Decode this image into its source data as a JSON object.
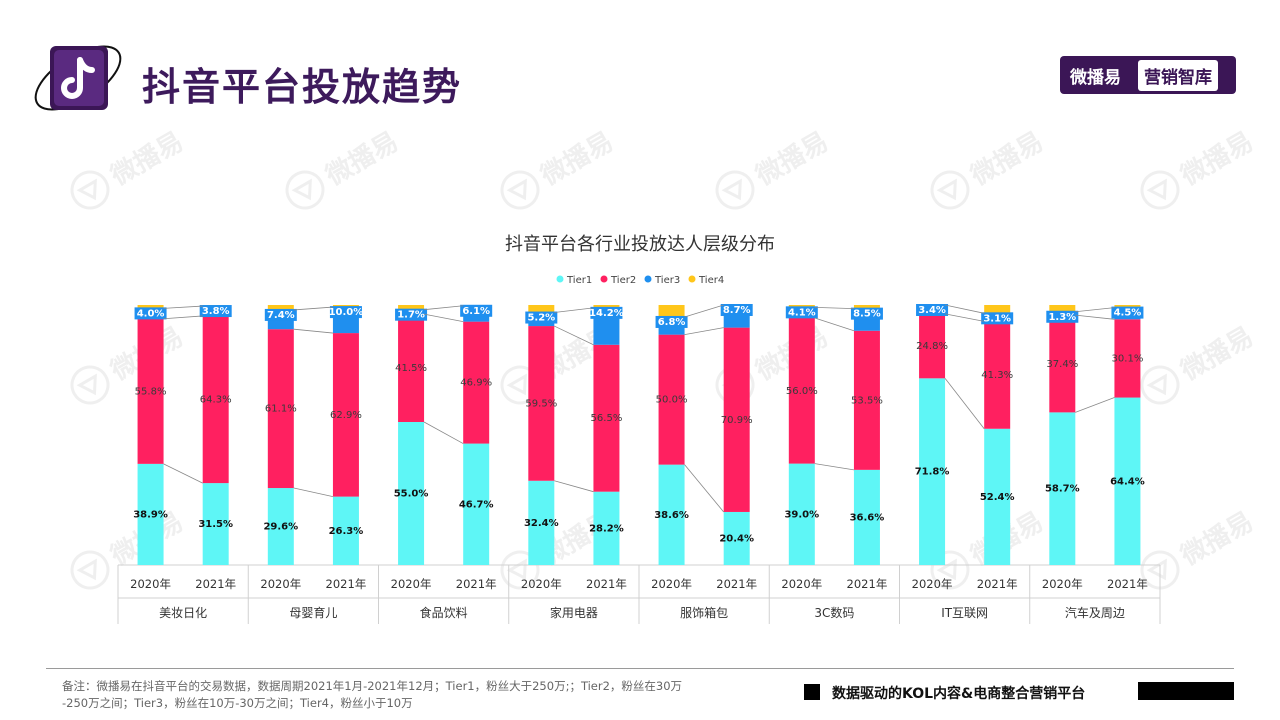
{
  "header": {
    "title": "抖音平台投放趋势",
    "brand_name": "微播易",
    "brand_tag": "营销智库",
    "watermark_text": "微播易"
  },
  "footer": {
    "note_line1": "备注：微播易在抖音平台的交易数据，数据周期2021年1月-2021年12月；Tier1，粉丝大于250万;；Tier2，粉丝在30万",
    "note_line2": "-250万之间；Tier3，粉丝在10万-30万之间；Tier4，粉丝小于10万",
    "slogan": "数据驱动的KOL内容&电商整合营销平台"
  },
  "colors": {
    "Tier1": "#5ef6f6",
    "Tier2": "#ff2060",
    "Tier3": "#1f8fef",
    "Tier4": "#ffc61a",
    "title_purple": "#3d1a5c"
  },
  "chart_data": {
    "type": "bar",
    "stacked": true,
    "title": "抖音平台各行业投放达人层级分布",
    "legend": [
      "Tier1",
      "Tier2",
      "Tier3",
      "Tier4"
    ],
    "legend_position": "top",
    "ylim": [
      0,
      100
    ],
    "groups": [
      {
        "name": "美妆日化",
        "bars": [
          {
            "year": "2020年",
            "values": [
              38.9,
              55.8,
              4.0,
              1.3
            ],
            "labels": [
              "38.9%",
              "55.8%",
              "4.0%",
              ""
            ]
          },
          {
            "year": "2021年",
            "values": [
              31.5,
              64.3,
              3.8,
              0.4
            ],
            "labels": [
              "31.5%",
              "64.3%",
              "3.8%",
              ""
            ]
          }
        ]
      },
      {
        "name": "母婴育儿",
        "bars": [
          {
            "year": "2020年",
            "values": [
              29.6,
              61.1,
              7.4,
              1.9
            ],
            "labels": [
              "29.6%",
              "61.1%",
              "7.4%",
              ""
            ]
          },
          {
            "year": "2021年",
            "values": [
              26.3,
              62.9,
              10.0,
              0.8
            ],
            "labels": [
              "26.3%",
              "62.9%",
              "10.0%",
              ""
            ]
          }
        ]
      },
      {
        "name": "食品饮料",
        "bars": [
          {
            "year": "2020年",
            "values": [
              55.0,
              41.5,
              1.7,
              1.8
            ],
            "labels": [
              "55.0%",
              "41.5%",
              "1.7%",
              ""
            ]
          },
          {
            "year": "2021年",
            "values": [
              46.7,
              46.9,
              6.1,
              0.3
            ],
            "labels": [
              "46.7%",
              "46.9%",
              "6.1%",
              ""
            ]
          }
        ]
      },
      {
        "name": "家用电器",
        "bars": [
          {
            "year": "2020年",
            "values": [
              32.4,
              59.5,
              5.2,
              2.9
            ],
            "labels": [
              "32.4%",
              "59.5%",
              "5.2%",
              ""
            ]
          },
          {
            "year": "2021年",
            "values": [
              28.2,
              56.5,
              14.2,
              1.1
            ],
            "labels": [
              "28.2%",
              "56.5%",
              "14.2%",
              ""
            ]
          }
        ]
      },
      {
        "name": "服饰箱包",
        "bars": [
          {
            "year": "2020年",
            "values": [
              38.6,
              50.0,
              6.8,
              4.6
            ],
            "labels": [
              "38.6%",
              "50.0%",
              "6.8%",
              ""
            ]
          },
          {
            "year": "2021年",
            "values": [
              20.4,
              70.9,
              8.7,
              0.0
            ],
            "labels": [
              "20.4%",
              "70.9%",
              "8.7%",
              ""
            ]
          }
        ]
      },
      {
        "name": "3C数码",
        "bars": [
          {
            "year": "2020年",
            "values": [
              39.0,
              56.0,
              4.1,
              0.9
            ],
            "labels": [
              "39.0%",
              "56.0%",
              "4.1%",
              ""
            ]
          },
          {
            "year": "2021年",
            "values": [
              36.6,
              53.5,
              8.5,
              1.4
            ],
            "labels": [
              "36.6%",
              "53.5%",
              "8.5%",
              ""
            ]
          }
        ]
      },
      {
        "name": "IT互联网",
        "bars": [
          {
            "year": "2020年",
            "values": [
              71.8,
              24.8,
              3.4,
              0.0
            ],
            "labels": [
              "71.8%",
              "24.8%",
              "3.4%",
              ""
            ]
          },
          {
            "year": "2021年",
            "values": [
              52.4,
              41.3,
              3.1,
              3.2
            ],
            "labels": [
              "52.4%",
              "41.3%",
              "3.1%",
              ""
            ]
          }
        ]
      },
      {
        "name": "汽车及周边",
        "bars": [
          {
            "year": "2020年",
            "values": [
              58.7,
              37.4,
              1.3,
              2.6
            ],
            "labels": [
              "58.7%",
              "37.4%",
              "1.3%",
              ""
            ]
          },
          {
            "year": "2021年",
            "values": [
              64.4,
              30.1,
              4.5,
              1.0
            ],
            "labels": [
              "64.4%",
              "30.1%",
              "4.5%",
              ""
            ]
          }
        ]
      }
    ]
  }
}
